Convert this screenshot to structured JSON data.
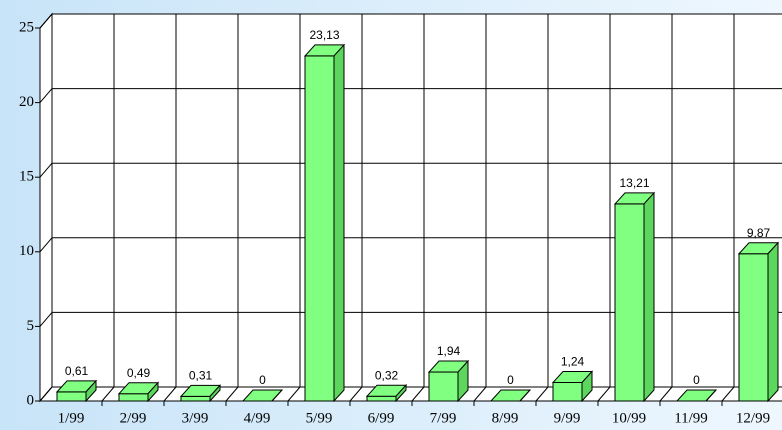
{
  "chart_data": {
    "type": "bar3d",
    "categories": [
      "1/99",
      "2/99",
      "3/99",
      "4/99",
      "5/99",
      "6/99",
      "7/99",
      "8/99",
      "9/99",
      "10/99",
      "11/99",
      "12/99"
    ],
    "values": [
      0.61,
      0.49,
      0.31,
      0,
      23.13,
      0.32,
      1.94,
      0,
      1.24,
      13.21,
      0,
      9.87
    ],
    "value_labels": [
      "0,61",
      "0,49",
      "0,31",
      "0",
      "23,13",
      "0,32",
      "1,94",
      "0",
      "1,24",
      "13,21",
      "0",
      "9,87"
    ],
    "color": "#80ff80",
    "ylim": [
      0,
      25
    ],
    "yticks": [
      0,
      5,
      10,
      15,
      20,
      25
    ],
    "grid": true
  }
}
